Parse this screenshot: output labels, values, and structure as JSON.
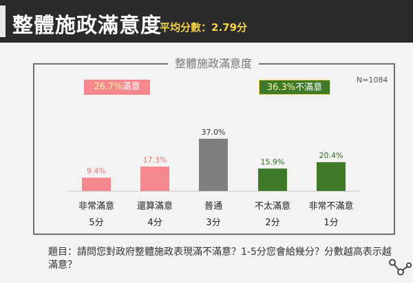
{
  "header": {
    "title": "整體施政滿意度",
    "subtitle": "平均分數：2.79分"
  },
  "frame_title": "整體施政滿意度",
  "sample_note": "N=1084",
  "summary": {
    "satisfied_pct": "26.7%",
    "satisfied_label": "滿意",
    "dissatisfied_pct": "36.3%",
    "dissatisfied_label": "不滿意"
  },
  "question": "題目：請問您對政府整體施政表現滿不滿意？1-5分您會給幾分？分數越高表示越滿意？",
  "colors": {
    "satisfied": "#f4888e",
    "neutral": "#7f7f7f",
    "dissatisfied": "#3e7a2a",
    "header_bg": "#2b2b2b",
    "subtitle": "#f3d34a"
  },
  "chart_data": {
    "type": "bar",
    "title": "整體施政滿意度",
    "categories": [
      "非常滿意",
      "還算滿意",
      "普通",
      "不太滿意",
      "非常不滿意"
    ],
    "scores": [
      "5分",
      "4分",
      "3分",
      "2分",
      "1分"
    ],
    "values": [
      9.4,
      17.3,
      37.0,
      15.9,
      20.4
    ],
    "value_labels": [
      "9.4%",
      "17.3%",
      "37.0%",
      "15.9%",
      "20.4%"
    ],
    "groups": [
      "satisfied",
      "satisfied",
      "neutral",
      "dissatisfied",
      "dissatisfied"
    ],
    "ylim": [
      0,
      37.0
    ],
    "grid": false
  }
}
